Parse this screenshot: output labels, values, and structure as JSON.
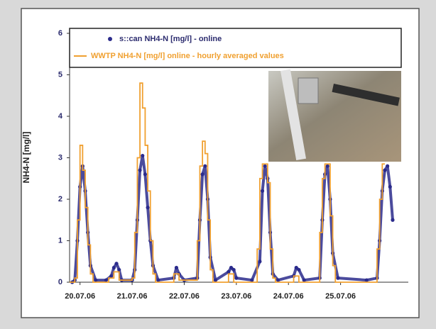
{
  "chart_data": {
    "type": "line",
    "ylabel": "NH4-N [mg/l]",
    "xlim": [
      -0.2,
      6.3
    ],
    "ylim": [
      0,
      6
    ],
    "yticks": [
      0,
      1,
      2,
      3,
      4,
      5,
      6
    ],
    "xticks": [
      {
        "value": 0,
        "label": "20.07.06"
      },
      {
        "value": 1,
        "label": "21.07.06"
      },
      {
        "value": 2,
        "label": "22.07.06"
      },
      {
        "value": 3,
        "label": "23.07.06"
      },
      {
        "value": 4,
        "label": "24.07.06"
      },
      {
        "value": 5,
        "label": "25.07.06"
      }
    ],
    "series": [
      {
        "name": "s::can NH4-N [mg/l] - online",
        "color": "#2b2b8c",
        "style": "markers",
        "x": [
          -0.15,
          -0.1,
          -0.05,
          0,
          0.05,
          0.1,
          0.15,
          0.2,
          0.3,
          0.5,
          0.6,
          0.65,
          0.7,
          0.75,
          0.8,
          1.0,
          1.05,
          1.1,
          1.15,
          1.2,
          1.25,
          1.3,
          1.35,
          1.4,
          1.5,
          1.8,
          1.85,
          1.9,
          2.0,
          2.25,
          2.3,
          2.35,
          2.4,
          2.45,
          2.5,
          2.6,
          2.85,
          2.9,
          2.95,
          3.0,
          3.3,
          3.45,
          3.5,
          3.55,
          3.6,
          3.65,
          3.7,
          3.8,
          4.1,
          4.15,
          4.2,
          4.3,
          4.6,
          4.65,
          4.7,
          4.75,
          4.8,
          4.85,
          4.95,
          5.5,
          5.7,
          5.75,
          5.8,
          5.85,
          5.9,
          5.95,
          6.0
        ],
        "values": [
          0,
          0.05,
          1.0,
          2.3,
          2.8,
          2.2,
          1.2,
          0.4,
          0.05,
          0.05,
          0.15,
          0.35,
          0.45,
          0.3,
          0.05,
          0.05,
          0.3,
          1.5,
          2.7,
          3.05,
          2.6,
          1.8,
          1.0,
          0.4,
          0.05,
          0.1,
          0.35,
          0.2,
          0.05,
          0.1,
          1.5,
          2.6,
          2.8,
          2.0,
          0.6,
          0.05,
          0.25,
          0.35,
          0.3,
          0.1,
          0.05,
          0.5,
          2.2,
          2.8,
          2.5,
          1.2,
          0.2,
          0.05,
          0.15,
          0.35,
          0.3,
          0.05,
          0.1,
          1.5,
          2.6,
          2.8,
          2.0,
          0.7,
          0.1,
          0.05,
          0.1,
          1.0,
          2.2,
          2.7,
          2.8,
          2.3,
          1.5
        ]
      },
      {
        "name": "WWTP NH4-N [mg/l] online - hourly averaged values",
        "color": "#f0a030",
        "style": "steps",
        "x": [
          -0.2,
          -0.1,
          -0.05,
          0,
          0.05,
          0.1,
          0.15,
          0.2,
          0.25,
          0.55,
          0.65,
          0.75,
          1.0,
          1.05,
          1.1,
          1.15,
          1.2,
          1.25,
          1.3,
          1.35,
          1.4,
          1.45,
          1.8,
          1.9,
          2.25,
          2.3,
          2.35,
          2.4,
          2.45,
          2.5,
          2.55,
          2.85,
          2.95,
          3.4,
          3.45,
          3.5,
          3.6,
          3.65,
          3.7,
          3.75,
          4.1,
          4.2,
          4.6,
          4.65,
          4.7,
          4.8,
          4.85,
          4.9,
          5.7,
          5.75,
          5.8,
          5.85
        ],
        "values": [
          0,
          0.1,
          1.5,
          3.3,
          2.7,
          1.8,
          0.9,
          0.2,
          0,
          0.1,
          0.25,
          0.05,
          0.1,
          1.2,
          3.0,
          4.8,
          4.2,
          3.3,
          2.2,
          1.0,
          0.2,
          0,
          0.2,
          0.05,
          1.0,
          2.8,
          3.4,
          3.1,
          1.5,
          0.3,
          0,
          0.2,
          0,
          0.8,
          2.5,
          2.85,
          2.4,
          0.8,
          0.1,
          0,
          0.15,
          0,
          1.2,
          2.5,
          2.85,
          1.6,
          0.4,
          0,
          0.8,
          2.0,
          2.85,
          2.85
        ]
      }
    ]
  }
}
